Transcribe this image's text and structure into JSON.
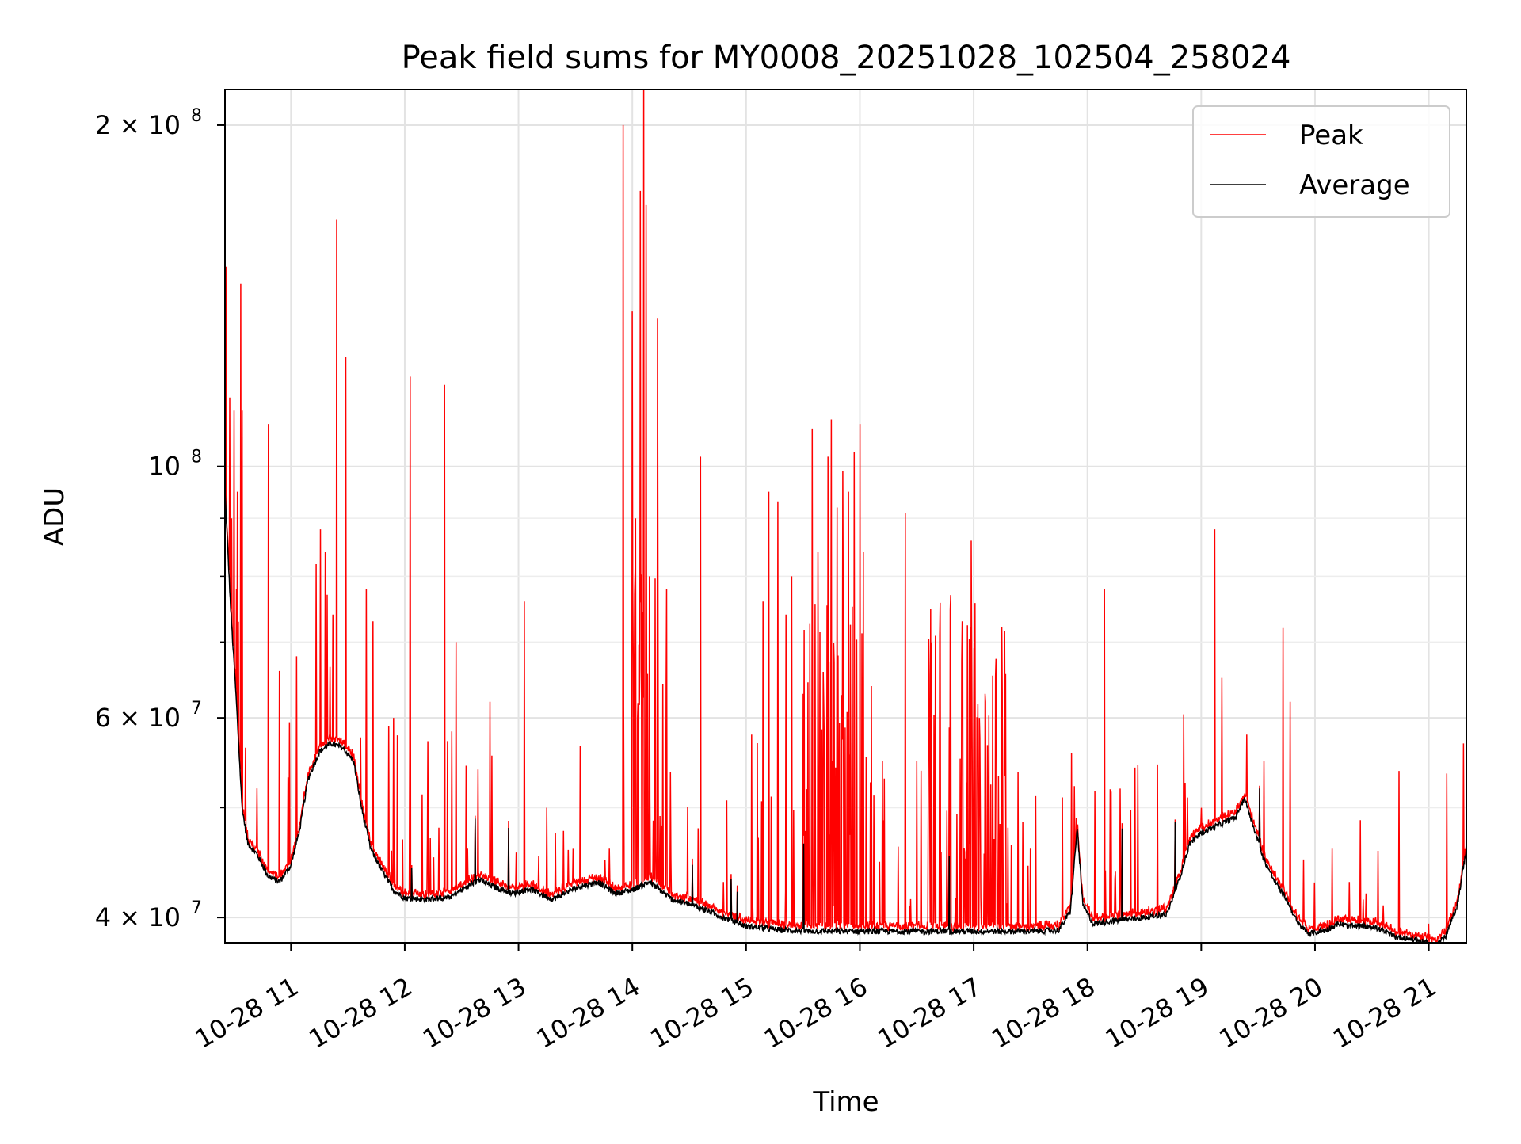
{
  "chart_data": {
    "type": "line",
    "title": "Peak field sums for MY0008_20251028_102504_258024",
    "xlabel": "Time",
    "ylabel": "ADU",
    "yscale": "log",
    "xlim": [
      10.42,
      21.33
    ],
    "ylim": [
      38000000,
      215000000
    ],
    "grid": true,
    "legend_position": "top-right",
    "x_ticks": [
      {
        "value": 11,
        "label": "10-28 11"
      },
      {
        "value": 12,
        "label": "10-28 12"
      },
      {
        "value": 13,
        "label": "10-28 13"
      },
      {
        "value": 14,
        "label": "10-28 14"
      },
      {
        "value": 15,
        "label": "10-28 15"
      },
      {
        "value": 16,
        "label": "10-28 16"
      },
      {
        "value": 17,
        "label": "10-28 17"
      },
      {
        "value": 18,
        "label": "10-28 18"
      },
      {
        "value": 19,
        "label": "10-28 19"
      },
      {
        "value": 20,
        "label": "10-28 20"
      },
      {
        "value": 21,
        "label": "10-28 21"
      }
    ],
    "y_ticks_major": [
      {
        "value": 40000000,
        "base": "4 × 10",
        "exp": "7"
      },
      {
        "value": 60000000,
        "base": "6 × 10",
        "exp": "7"
      },
      {
        "value": 100000000,
        "base": "10",
        "exp": "8"
      },
      {
        "value": 200000000,
        "base": "2 × 10",
        "exp": "8"
      }
    ],
    "y_ticks_minor": [
      50000000,
      70000000,
      80000000,
      90000000
    ],
    "baseline": [
      [
        10.42,
        95000000
      ],
      [
        10.47,
        75000000
      ],
      [
        10.52,
        62000000
      ],
      [
        10.57,
        50000000
      ],
      [
        10.62,
        46500000
      ],
      [
        10.7,
        45500000
      ],
      [
        10.8,
        43500000
      ],
      [
        10.9,
        43000000
      ],
      [
        11.0,
        44500000
      ],
      [
        11.08,
        48000000
      ],
      [
        11.15,
        53000000
      ],
      [
        11.25,
        56000000
      ],
      [
        11.35,
        57000000
      ],
      [
        11.45,
        56500000
      ],
      [
        11.55,
        55000000
      ],
      [
        11.62,
        50000000
      ],
      [
        11.7,
        46000000
      ],
      [
        11.8,
        44000000
      ],
      [
        11.9,
        42300000
      ],
      [
        12.0,
        41600000
      ],
      [
        12.2,
        41500000
      ],
      [
        12.4,
        41700000
      ],
      [
        12.5,
        42300000
      ],
      [
        12.65,
        43200000
      ],
      [
        12.8,
        42500000
      ],
      [
        12.95,
        42000000
      ],
      [
        13.1,
        42400000
      ],
      [
        13.3,
        41500000
      ],
      [
        13.5,
        42500000
      ],
      [
        13.7,
        43000000
      ],
      [
        13.85,
        42000000
      ],
      [
        14.0,
        42300000
      ],
      [
        14.15,
        43000000
      ],
      [
        14.35,
        41500000
      ],
      [
        14.6,
        40800000
      ],
      [
        14.8,
        40000000
      ],
      [
        15.0,
        39300000
      ],
      [
        15.3,
        39000000
      ],
      [
        15.6,
        38900000
      ],
      [
        16.0,
        38900000
      ],
      [
        16.4,
        38900000
      ],
      [
        16.8,
        38900000
      ],
      [
        17.2,
        38900000
      ],
      [
        17.55,
        38900000
      ],
      [
        17.75,
        39000000
      ],
      [
        17.85,
        40500000
      ],
      [
        17.91,
        48000000
      ],
      [
        17.96,
        41000000
      ],
      [
        18.05,
        39500000
      ],
      [
        18.2,
        39700000
      ],
      [
        18.5,
        40000000
      ],
      [
        18.7,
        40300000
      ],
      [
        18.8,
        43000000
      ],
      [
        18.9,
        46500000
      ],
      [
        19.0,
        47500000
      ],
      [
        19.1,
        48000000
      ],
      [
        19.2,
        48500000
      ],
      [
        19.3,
        49000000
      ],
      [
        19.38,
        51000000
      ],
      [
        19.45,
        48500000
      ],
      [
        19.55,
        45000000
      ],
      [
        19.65,
        43000000
      ],
      [
        19.75,
        41500000
      ],
      [
        19.85,
        39500000
      ],
      [
        19.95,
        38700000
      ],
      [
        20.1,
        39000000
      ],
      [
        20.2,
        39500000
      ],
      [
        20.3,
        39300000
      ],
      [
        20.5,
        39300000
      ],
      [
        20.7,
        38500000
      ],
      [
        20.9,
        38200000
      ],
      [
        21.05,
        37800000
      ],
      [
        21.15,
        38500000
      ],
      [
        21.25,
        41000000
      ],
      [
        21.33,
        46000000
      ]
    ],
    "spikes": [
      [
        10.43,
        150000000
      ],
      [
        10.46,
        115000000
      ],
      [
        10.48,
        90000000
      ],
      [
        10.5,
        112000000
      ],
      [
        10.52,
        78000000
      ],
      [
        10.53,
        95000000
      ],
      [
        10.56,
        145000000
      ],
      [
        10.57,
        112000000
      ],
      [
        10.7,
        52000000
      ],
      [
        10.8,
        109000000
      ],
      [
        10.9,
        66000000
      ],
      [
        11.05,
        68000000
      ],
      [
        11.22,
        82000000
      ],
      [
        11.26,
        88000000
      ],
      [
        11.3,
        84000000
      ],
      [
        11.37,
        74000000
      ],
      [
        11.4,
        165000000
      ],
      [
        11.48,
        125000000
      ],
      [
        11.66,
        78000000
      ],
      [
        11.72,
        73000000
      ],
      [
        11.9,
        60000000
      ],
      [
        12.05,
        120000000
      ],
      [
        12.2,
        47000000
      ],
      [
        12.3,
        48000000
      ],
      [
        12.35,
        118000000
      ],
      [
        12.45,
        70000000
      ],
      [
        12.55,
        46000000
      ],
      [
        12.75,
        62000000
      ],
      [
        13.05,
        76000000
      ],
      [
        13.25,
        50000000
      ],
      [
        13.8,
        46000000
      ],
      [
        13.92,
        200000000
      ],
      [
        14.0,
        137000000
      ],
      [
        14.03,
        90000000
      ],
      [
        14.07,
        175000000
      ],
      [
        14.1,
        215000000
      ],
      [
        14.12,
        170000000
      ],
      [
        14.15,
        80000000
      ],
      [
        14.22,
        135000000
      ],
      [
        14.3,
        78000000
      ],
      [
        14.6,
        102000000
      ],
      [
        14.8,
        43000000
      ],
      [
        15.05,
        58000000
      ],
      [
        15.1,
        57000000
      ],
      [
        15.15,
        76000000
      ],
      [
        15.2,
        95000000
      ],
      [
        15.28,
        93000000
      ],
      [
        15.35,
        74000000
      ],
      [
        15.4,
        80000000
      ],
      [
        15.5,
        63000000
      ],
      [
        15.58,
        108000000
      ],
      [
        15.63,
        84000000
      ],
      [
        15.68,
        62000000
      ],
      [
        15.72,
        102000000
      ],
      [
        15.75,
        110000000
      ],
      [
        15.8,
        92000000
      ],
      [
        15.85,
        99000000
      ],
      [
        15.9,
        95000000
      ],
      [
        15.95,
        103000000
      ],
      [
        16.0,
        109000000
      ],
      [
        16.03,
        84000000
      ],
      [
        16.1,
        64000000
      ],
      [
        16.2,
        55000000
      ],
      [
        16.4,
        91000000
      ],
      [
        16.5,
        55000000
      ],
      [
        16.6,
        52000000
      ],
      [
        16.7,
        71000000
      ],
      [
        16.8,
        77000000
      ],
      [
        16.9,
        73000000
      ],
      [
        16.98,
        86000000
      ],
      [
        17.05,
        60000000
      ],
      [
        17.1,
        63000000
      ],
      [
        17.2,
        56000000
      ],
      [
        17.3,
        48000000
      ],
      [
        17.5,
        46000000
      ],
      [
        17.9,
        49000000
      ],
      [
        18.15,
        78000000
      ],
      [
        19.0,
        50000000
      ],
      [
        19.12,
        88000000
      ],
      [
        19.4,
        58000000
      ],
      [
        19.55,
        55000000
      ],
      [
        19.72,
        72000000
      ],
      [
        19.78,
        62000000
      ],
      [
        19.9,
        45000000
      ],
      [
        20.15,
        46000000
      ],
      [
        20.3,
        43000000
      ],
      [
        20.45,
        42000000
      ],
      [
        20.6,
        41000000
      ],
      [
        21.0,
        39500000
      ]
    ],
    "series": [
      {
        "name": "Peak",
        "color": "#ff0000"
      },
      {
        "name": "Average",
        "color": "#000000"
      }
    ]
  }
}
